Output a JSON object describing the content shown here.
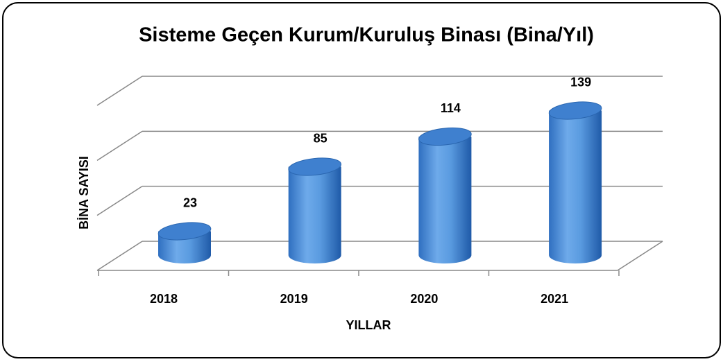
{
  "chart_data": {
    "type": "bar3d",
    "title": "Sisteme Geçen Kurum/Kuruluş Binası (Bina/Yıl)",
    "xlabel": "YILLAR",
    "ylabel": "BİNA SAYISI",
    "categories": [
      "2018",
      "2019",
      "2020",
      "2021"
    ],
    "values": [
      23,
      85,
      114,
      139
    ],
    "color": "#4a8fdc",
    "ylim": [
      0,
      150
    ],
    "yticks": [
      0,
      50,
      100,
      150
    ],
    "grid": true
  }
}
